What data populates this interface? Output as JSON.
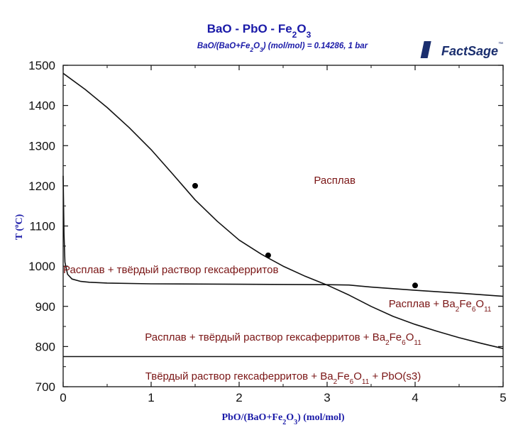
{
  "chart_data": {
    "type": "line",
    "title": {
      "prefix": "BaO - PbO - Fe",
      "sub": "2",
      "suffix": "O",
      "sub2": "3"
    },
    "subtitle": {
      "parts": [
        {
          "t": "BaO/(BaO+Fe",
          "s": false
        },
        {
          "t": "2",
          "s": true
        },
        {
          "t": "O",
          "s": false
        },
        {
          "t": "3",
          "s": true
        },
        {
          "t": ") (mol/mol)  = 0.14286,  1 bar",
          "s": false
        }
      ]
    },
    "xlabel": {
      "parts": [
        {
          "t": "PbO/(BaO+Fe",
          "s": false
        },
        {
          "t": "2",
          "s": true
        },
        {
          "t": "O",
          "s": false
        },
        {
          "t": "3",
          "s": true
        },
        {
          "t": ") (mol/mol)",
          "s": false
        }
      ]
    },
    "ylabel": {
      "prefix": "T (",
      "sup": "o",
      "suffix": "C)"
    },
    "xlim": [
      0,
      5
    ],
    "ylim": [
      700,
      1500
    ],
    "xticks": [
      0,
      1,
      2,
      3,
      4,
      5
    ],
    "yticks": [
      700,
      800,
      900,
      1000,
      1100,
      1200,
      1300,
      1400,
      1500
    ],
    "xtick_labels": [
      "0",
      "1",
      "2",
      "3",
      "4",
      "5"
    ],
    "ytick_labels": [
      "700",
      "800",
      "900",
      "1000",
      "1100",
      "1200",
      "1300",
      "1400",
      "1500"
    ],
    "grid": false,
    "series": [
      {
        "x": [
          0,
          0.25,
          0.5,
          0.75,
          1.0,
          1.25,
          1.5,
          1.75,
          2.0,
          2.25,
          2.5,
          2.75,
          3.0,
          3.25,
          3.5,
          3.75,
          4.0,
          4.25,
          4.5,
          4.75,
          5.0
        ],
        "y": [
          1480,
          1440,
          1395,
          1345,
          1290,
          1228,
          1165,
          1112,
          1065,
          1030,
          1000,
          975,
          953,
          928,
          900,
          875,
          855,
          838,
          822,
          808,
          795
        ]
      },
      {
        "x": [
          0,
          0.01,
          0.02,
          0.05,
          0.1,
          0.2,
          0.3,
          0.5,
          1.0,
          2.0,
          3.0,
          3.25,
          3.5,
          4.0,
          4.5,
          5.0
        ],
        "y": [
          1225,
          1080,
          1010,
          980,
          968,
          962,
          960,
          958,
          956,
          955,
          954,
          953,
          948,
          940,
          933,
          925
        ]
      },
      {
        "x": [
          0,
          5
        ],
        "y": [
          775,
          775
        ]
      }
    ],
    "points": [
      {
        "x": 1.5,
        "y": 1200
      },
      {
        "x": 2.33,
        "y": 1027
      },
      {
        "x": 4.0,
        "y": 952
      }
    ],
    "annotations": [
      {
        "x": 2.85,
        "y": 1205,
        "anchor": "start",
        "parts": [
          {
            "t": "Расплав",
            "s": false
          }
        ]
      },
      {
        "x": 0.0,
        "y": 983,
        "anchor": "start",
        "parts": [
          {
            "t": "Расплав + твёрдый раствор гексаферритов",
            "s": false
          }
        ]
      },
      {
        "x": 3.7,
        "y": 898,
        "anchor": "start",
        "parts": [
          {
            "t": "Расплав + Ba",
            "s": false
          },
          {
            "t": "2",
            "s": true
          },
          {
            "t": "Fe",
            "s": false
          },
          {
            "t": "6",
            "s": true
          },
          {
            "t": "O",
            "s": false
          },
          {
            "t": "11",
            "s": true
          }
        ]
      },
      {
        "x": 2.5,
        "y": 815,
        "anchor": "middle",
        "parts": [
          {
            "t": "Расплав + твёрдый раствор гексаферритов + Ba",
            "s": false
          },
          {
            "t": "2",
            "s": true
          },
          {
            "t": "Fe",
            "s": false
          },
          {
            "t": "6",
            "s": true
          },
          {
            "t": "O",
            "s": false
          },
          {
            "t": "11",
            "s": true
          }
        ]
      },
      {
        "x": 2.5,
        "y": 718,
        "anchor": "middle",
        "parts": [
          {
            "t": "Твёрдый раствор гексаферритов + Ba",
            "s": false
          },
          {
            "t": "2",
            "s": true
          },
          {
            "t": "Fe",
            "s": false
          },
          {
            "t": "6",
            "s": true
          },
          {
            "t": "O",
            "s": false
          },
          {
            "t": "11",
            "s": true
          },
          {
            "t": " + PbO(s3)",
            "s": false
          }
        ]
      }
    ]
  },
  "logo": {
    "text": "FactSage",
    "tm": "™"
  },
  "colors": {
    "line": "#111111",
    "title": "#1a1aa8",
    "region": "#7a1515",
    "logo": "#1a2e6e"
  }
}
